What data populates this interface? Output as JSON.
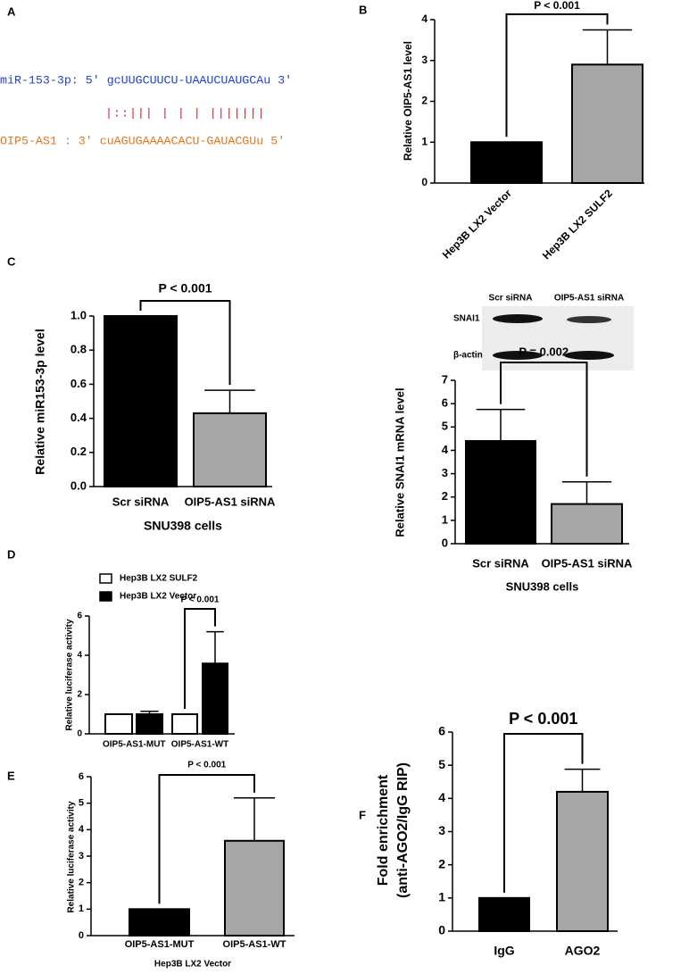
{
  "panels": [
    "A",
    "B",
    "C",
    "D",
    "E",
    "F"
  ],
  "alignment": {
    "mirna": "miR-153-3p: 5' gcUUGCUUCU-UAAUCUAUGCAu 3'",
    "pairing": "|::||| | | | |||||||",
    "target": "OIP5-AS1 : 3' cuAGUGAAAACACU-GAUACGUu 5'"
  },
  "blot": {
    "columns": [
      "Scr siRNA",
      "OIP5-AS1 siRNA"
    ],
    "rows": [
      "SNAI1",
      "β-actin"
    ]
  },
  "chart_data": [
    {
      "type": "bar",
      "categories": [
        "Hep3B LX2 Vector",
        "Hep3B LX2 SULF2"
      ],
      "values": [
        1,
        2.9
      ],
      "errors": [
        null,
        0.85
      ],
      "colors": [
        "#000000",
        "#a6a6a6"
      ],
      "ylabel": "Relative OIP5-AS1 level",
      "annotation": "P < 0.001",
      "ylim": [
        0,
        4
      ],
      "yticks": [
        0,
        1,
        2,
        3,
        4
      ]
    },
    {
      "type": "bar",
      "categories": [
        "Scr siRNA",
        "OIP5-AS1 siRNA"
      ],
      "values": [
        1.0,
        0.43
      ],
      "errors": [
        null,
        0.135
      ],
      "colors": [
        "#000000",
        "#a6a6a6"
      ],
      "ylabel": "Relative miR153-3p level",
      "xlabel": "SNU398 cells",
      "annotation": "P < 0.001",
      "ylim": [
        0,
        1.0
      ],
      "yticks": [
        {
          "value": 0,
          "label": "0.0"
        },
        {
          "value": 0.2,
          "label": "0.2"
        },
        {
          "value": 0.4,
          "label": "0.4"
        },
        {
          "value": 0.6,
          "label": "0.6"
        },
        {
          "value": 0.8,
          "label": "0.8"
        },
        {
          "value": 1,
          "label": "1.0"
        }
      ]
    },
    {
      "type": "bar",
      "categories": [
        "Scr siRNA",
        "OIP5-AS1 siRNA"
      ],
      "values": [
        4.4,
        1.7
      ],
      "errors": [
        1.35,
        0.95
      ],
      "colors": [
        "#000000",
        "#a6a6a6"
      ],
      "ylabel": "Relative SNAI1 mRNA level",
      "xlabel": "SNU398 cells",
      "annotation": "P = 0.002",
      "ylim": [
        0,
        7
      ],
      "yticks": [
        0,
        1,
        2,
        3,
        4,
        5,
        6,
        7
      ]
    },
    {
      "type": "bar",
      "categories": [
        "OIP5-AS1-MUT",
        "OIP5-AS1-WT"
      ],
      "series": [
        {
          "name": "Hep3B LX2 SULF2",
          "color": "#ffffff",
          "values": [
            1,
            1
          ],
          "errors": [
            null,
            null
          ]
        },
        {
          "name": "Hep3B LX2 Vector",
          "color": "#000000",
          "values": [
            1,
            3.58
          ],
          "errors": [
            0.15,
            1.62
          ]
        }
      ],
      "ylabel": "Relative luciferase activity",
      "annotation": "P < 0.001",
      "ylim": [
        0,
        6
      ],
      "yticks": [
        0,
        2,
        4,
        6
      ]
    },
    {
      "type": "bar",
      "categories": [
        "OIP5-AS1-MUT",
        "OIP5-AS1-WT"
      ],
      "values": [
        1,
        3.58
      ],
      "errors": [
        null,
        1.62
      ],
      "colors": [
        "#000000",
        "#a6a6a6"
      ],
      "ylabel": "Relative luciferase activity",
      "xlabel": "Hep3B LX2 Vector",
      "annotation": "P < 0.001",
      "ylim": [
        0,
        6
      ],
      "yticks": [
        0,
        1,
        2,
        3,
        4,
        5,
        6
      ]
    },
    {
      "type": "bar",
      "categories": [
        "IgG",
        "AGO2"
      ],
      "values": [
        1,
        4.2
      ],
      "errors": [
        null,
        0.68
      ],
      "colors": [
        "#000000",
        "#a6a6a6"
      ],
      "ylabel": [
        "Fold enrichment",
        "(anti-AGO2/IgG RIP)"
      ],
      "annotation": "P < 0.001",
      "ylim": [
        0,
        6
      ],
      "yticks": [
        0,
        1,
        2,
        3,
        4,
        5,
        6
      ]
    }
  ]
}
